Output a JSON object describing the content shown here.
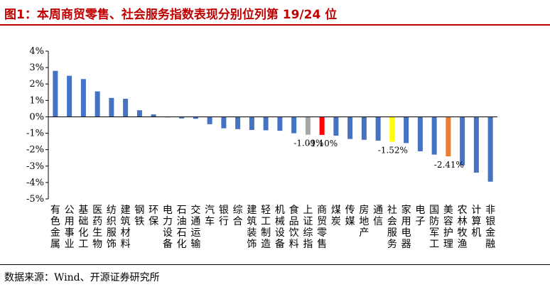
{
  "title": "图1：本周商贸零售、社会服务指数表现分别位列第 19/24 位",
  "source": "数据来源：Wind、开源证券研究所",
  "chart_data": {
    "type": "bar",
    "ylim": [
      -5,
      4
    ],
    "yticks": [
      "4%",
      "3%",
      "2%",
      "1%",
      "0%",
      "-1%",
      "-2%",
      "-3%",
      "-4%",
      "-5%"
    ],
    "ytick_values": [
      4,
      3,
      2,
      1,
      0,
      -1,
      -2,
      -3,
      -4,
      -5
    ],
    "grid": false,
    "legend": "none",
    "categories": [
      "有色金属",
      "公用事业",
      "基础化工",
      "医药生物",
      "纺织服饰",
      "建筑材料",
      "钢铁",
      "环保",
      "电力设备",
      "石油石化",
      "交通运输",
      "汽车",
      "银行",
      "综合",
      "建筑装饰",
      "轻工制造",
      "机械设备",
      "食品饮料",
      "上证综指",
      "商贸零售",
      "煤炭",
      "传媒",
      "房地产",
      "通信",
      "社会服务",
      "家用电器",
      "电子",
      "国防军工",
      "美容护理",
      "农林牧渔",
      "计算机",
      "非银金融"
    ],
    "values": [
      2.8,
      2.5,
      2.3,
      1.55,
      1.15,
      1.1,
      0.4,
      0.15,
      -0.02,
      -0.1,
      -0.12,
      -0.45,
      -0.7,
      -0.75,
      -0.8,
      -0.82,
      -0.85,
      -1.0,
      -1.09,
      -1.1,
      -1.15,
      -1.35,
      -1.4,
      -1.45,
      -1.52,
      -1.6,
      -2.1,
      -2.3,
      -2.41,
      -2.95,
      -3.4,
      -3.95
    ],
    "colors": {
      "default": "#4472c4",
      "highlight": {
        "上证综指": "#a6a6a6",
        "商贸零售": "#ff0000",
        "社会服务": "#ffff00",
        "美容护理": "#ed7d31"
      }
    },
    "data_labels": [
      {
        "category": "上证综指",
        "text": "-1.09%"
      },
      {
        "category": "商贸零售",
        "text": "-1.10%"
      },
      {
        "category": "社会服务",
        "text": "-1.52%"
      },
      {
        "category": "美容护理",
        "text": "-2.41%"
      }
    ]
  }
}
